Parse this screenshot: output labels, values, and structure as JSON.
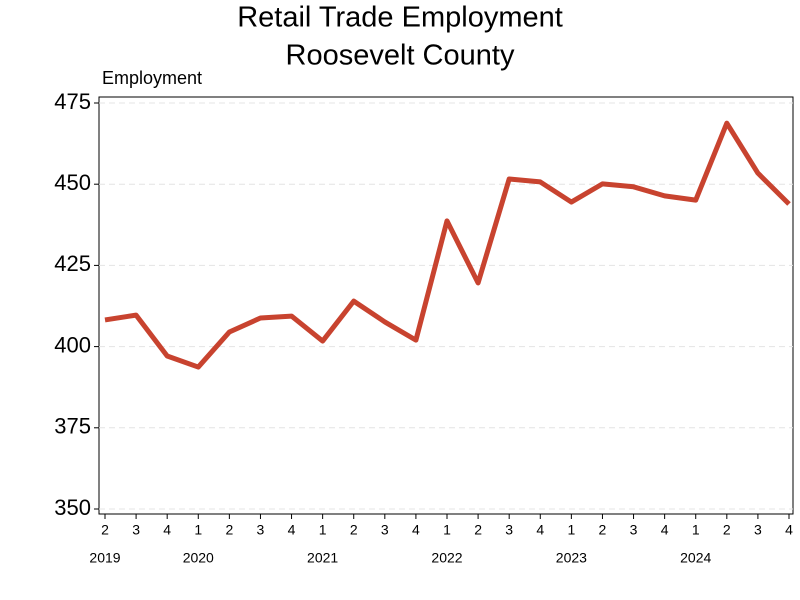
{
  "chart_data": {
    "type": "line",
    "title": [
      "Retail Trade Employment",
      "Roosevelt County"
    ],
    "y_label": "Employment",
    "categories": [
      "2",
      "3",
      "4",
      "1",
      "2",
      "3",
      "4",
      "1",
      "2",
      "3",
      "4",
      "1",
      "2",
      "3",
      "4",
      "1",
      "2",
      "3",
      "4",
      "1",
      "2",
      "3",
      "4"
    ],
    "year_labels": [
      {
        "label": "2019",
        "first_category": 0
      },
      {
        "label": "2020",
        "first_category": 3
      },
      {
        "label": "2021",
        "first_category": 7
      },
      {
        "label": "2022",
        "first_category": 11
      },
      {
        "label": "2023",
        "first_category": 15
      },
      {
        "label": "2024",
        "first_category": 19
      }
    ],
    "series": [
      {
        "name": "Employment",
        "color": "#c8432f",
        "values": [
          408.2,
          409.7,
          397.1,
          393.7,
          404.5,
          408.8,
          409.4,
          401.7,
          414.0,
          407.6,
          402.0,
          438.7,
          419.6,
          451.6,
          450.7,
          444.5,
          450.1,
          449.2,
          446.4,
          445.1,
          468.8,
          453.4,
          443.9
        ]
      }
    ],
    "ylim": [
      350,
      475
    ],
    "yticks": [
      350,
      375,
      400,
      425,
      450,
      475
    ],
    "grid": true
  }
}
